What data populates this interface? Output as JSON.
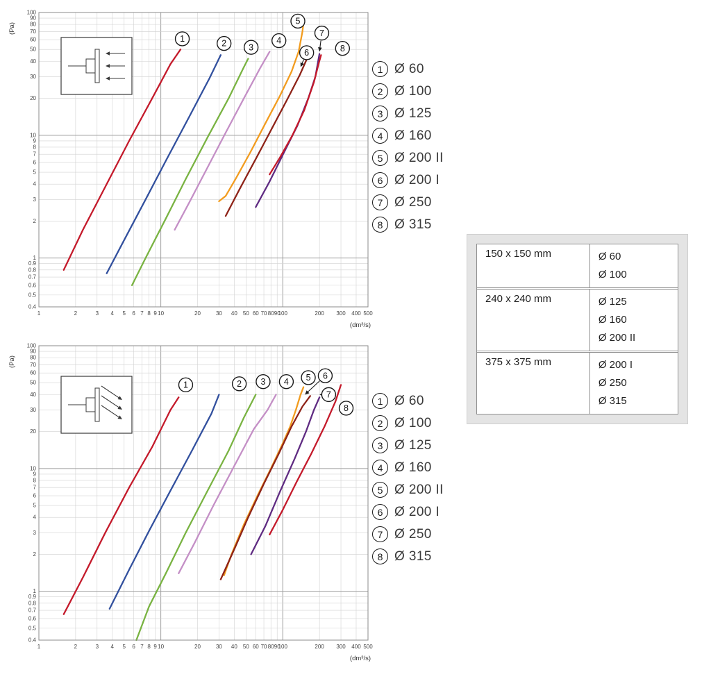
{
  "legend": {
    "items": [
      {
        "num": "1",
        "label": "Ø 60"
      },
      {
        "num": "2",
        "label": "Ø 100"
      },
      {
        "num": "3",
        "label": "Ø 125"
      },
      {
        "num": "4",
        "label": "Ø 160"
      },
      {
        "num": "5",
        "label": "Ø 200 II"
      },
      {
        "num": "6",
        "label": "Ø 200 I"
      },
      {
        "num": "7",
        "label": "Ø 250"
      },
      {
        "num": "8",
        "label": "Ø 315"
      }
    ]
  },
  "table": {
    "rows": [
      {
        "size": "150 x 150 mm",
        "diameters": [
          "Ø 60",
          "Ø 100"
        ]
      },
      {
        "size": "240 x 240 mm",
        "diameters": [
          "Ø 125",
          "Ø 160",
          "Ø 200 II"
        ]
      },
      {
        "size": "375 x 375 mm",
        "diameters": [
          "Ø 200 I",
          "Ø 250",
          "Ø 315"
        ]
      }
    ]
  },
  "chart_data": [
    {
      "type": "line",
      "title": "",
      "x_label": "(dm³/s)",
      "y_label": "(Pa)",
      "x_scale": "log",
      "y_scale": "log",
      "x_range": [
        1,
        500
      ],
      "y_range": [
        0.4,
        100
      ],
      "x_ticks": [
        1,
        2,
        3,
        4,
        5,
        6,
        7,
        8,
        9,
        10,
        20,
        30,
        40,
        50,
        60,
        70,
        80,
        90,
        100,
        200,
        300,
        400,
        500
      ],
      "y_ticks": [
        100,
        90,
        80,
        70,
        60,
        50,
        40,
        30,
        20,
        10,
        9,
        8,
        7,
        6,
        5,
        4,
        3,
        2,
        1,
        0.9,
        0.8,
        0.7,
        0.6,
        0.5,
        0.4
      ],
      "grid": "log-log",
      "legend_position": "right",
      "inset_arrows": "left",
      "series": [
        {
          "num": "1",
          "name": "Ø 60",
          "color": "#c41a2b",
          "points": [
            [
              1.6,
              0.8
            ],
            [
              2.3,
              1.7
            ],
            [
              3.5,
              3.8
            ],
            [
              5.5,
              9
            ],
            [
              8.5,
              20
            ],
            [
              12,
              38
            ],
            [
              14.5,
              50
            ]
          ],
          "label_pos": [
            15,
            61
          ]
        },
        {
          "num": "2",
          "name": "Ø 100",
          "color": "#32509e",
          "points": [
            [
              3.6,
              0.75
            ],
            [
              5,
              1.4
            ],
            [
              7.5,
              3
            ],
            [
              11,
              6.2
            ],
            [
              17,
              14
            ],
            [
              25,
              29
            ],
            [
              31,
              45
            ]
          ],
          "label_pos": [
            33,
            56
          ]
        },
        {
          "num": "3",
          "name": "Ø 125",
          "color": "#79b342",
          "points": [
            [
              5.8,
              0.6
            ],
            [
              7.5,
              1
            ],
            [
              11,
              2.1
            ],
            [
              16,
              4.4
            ],
            [
              24,
              9.5
            ],
            [
              36,
              20
            ],
            [
              48,
              36
            ],
            [
              52,
              42
            ]
          ],
          "label_pos": [
            55,
            52
          ]
        },
        {
          "num": "4",
          "name": "Ø 160",
          "color": "#c48fc6",
          "points": [
            [
              13,
              1.7
            ],
            [
              17,
              2.8
            ],
            [
              24,
              5.4
            ],
            [
              34,
              10.5
            ],
            [
              48,
              20
            ],
            [
              65,
              35
            ],
            [
              78,
              48
            ]
          ],
          "label_pos": [
            93,
            59
          ]
        },
        {
          "num": "5",
          "name": "Ø 200 II",
          "color": "#f29c1f",
          "points": [
            [
              30,
              2.9
            ],
            [
              34,
              3.2
            ],
            [
              41,
              4.4
            ],
            [
              54,
              7.2
            ],
            [
              72,
              12.5
            ],
            [
              95,
              21
            ],
            [
              118,
              33
            ],
            [
              135,
              48
            ],
            [
              145,
              70
            ],
            [
              149,
              88
            ]
          ],
          "label_pos": [
            133,
            85
          ]
        },
        {
          "num": "6",
          "name": "Ø 200 I",
          "color": "#8e2318",
          "points": [
            [
              34,
              2.2
            ],
            [
              44,
              3.6
            ],
            [
              60,
              6.4
            ],
            [
              82,
              11.5
            ],
            [
              110,
              20
            ],
            [
              138,
              31
            ],
            [
              158,
              42
            ]
          ],
          "label_pos": [
            157,
            47
          ],
          "arrow_to": [
            140,
            36
          ]
        },
        {
          "num": "7",
          "name": "Ø 250",
          "color": "#5f2b82",
          "points": [
            [
              60,
              2.6
            ],
            [
              78,
              4.2
            ],
            [
              102,
              7.2
            ],
            [
              132,
              12
            ],
            [
              162,
              20
            ],
            [
              185,
              30
            ],
            [
              200,
              46
            ]
          ],
          "label_pos": [
            209,
            68
          ],
          "arrow_to": [
            200,
            48
          ]
        },
        {
          "num": "8",
          "name": "Ø 315",
          "color": "#c41a2b",
          "points": [
            [
              78,
              4.8
            ],
            [
              95,
              6.6
            ],
            [
              120,
              10
            ],
            [
              150,
              16
            ],
            [
              180,
              27
            ],
            [
              198,
              39
            ],
            [
              206,
              45
            ]
          ],
          "label_pos": [
            309,
            51
          ]
        }
      ]
    },
    {
      "type": "line",
      "title": "",
      "x_label": "(dm³/s)",
      "y_label": "(Pa)",
      "x_scale": "log",
      "y_scale": "log",
      "x_range": [
        1,
        500
      ],
      "y_range": [
        0.4,
        100
      ],
      "x_ticks": [
        1,
        2,
        3,
        4,
        5,
        6,
        7,
        8,
        9,
        10,
        20,
        30,
        40,
        50,
        60,
        70,
        80,
        90,
        100,
        200,
        300,
        400,
        500
      ],
      "y_ticks": [
        100,
        90,
        80,
        70,
        60,
        50,
        40,
        30,
        20,
        10,
        9,
        8,
        7,
        6,
        5,
        4,
        3,
        2,
        1,
        0.9,
        0.8,
        0.7,
        0.6,
        0.5,
        0.4
      ],
      "grid": "log-log",
      "legend_position": "right",
      "inset_arrows": "down-right",
      "series": [
        {
          "num": "1",
          "name": "Ø 60",
          "color": "#c41a2b",
          "points": [
            [
              1.6,
              0.65
            ],
            [
              2.3,
              1.3
            ],
            [
              3.5,
              3
            ],
            [
              5.5,
              7
            ],
            [
              8.5,
              15
            ],
            [
              12,
              30
            ],
            [
              14,
              38
            ]
          ],
          "label_pos": [
            16,
            48
          ]
        },
        {
          "num": "2",
          "name": "Ø 100",
          "color": "#32509e",
          "points": [
            [
              3.8,
              0.72
            ],
            [
              5.5,
              1.5
            ],
            [
              8,
              3.1
            ],
            [
              12,
              6.6
            ],
            [
              18,
              14
            ],
            [
              26,
              28
            ],
            [
              30,
              40
            ]
          ],
          "label_pos": [
            44,
            49
          ]
        },
        {
          "num": "3",
          "name": "Ø 125",
          "color": "#79b342",
          "points": [
            [
              6.3,
              0.4
            ],
            [
              8,
              0.75
            ],
            [
              11,
              1.4
            ],
            [
              16,
              3
            ],
            [
              24,
              6.5
            ],
            [
              36,
              14
            ],
            [
              48,
              26
            ],
            [
              60,
              40
            ]
          ],
          "label_pos": [
            69,
            51
          ]
        },
        {
          "num": "4",
          "name": "Ø 160",
          "color": "#c48fc6",
          "points": [
            [
              14,
              1.4
            ],
            [
              19,
              2.5
            ],
            [
              27,
              5
            ],
            [
              40,
              10.5
            ],
            [
              58,
              21
            ],
            [
              75,
              30
            ],
            [
              88,
              40
            ]
          ],
          "label_pos": [
            107,
            51
          ]
        },
        {
          "num": "5",
          "name": "Ø 200 II",
          "color": "#f29c1f",
          "points": [
            [
              33,
              1.35
            ],
            [
              38,
              2
            ],
            [
              48,
              3.5
            ],
            [
              62,
              6
            ],
            [
              80,
              10
            ],
            [
              100,
              16
            ],
            [
              115,
              22
            ],
            [
              128,
              30
            ],
            [
              140,
              40
            ],
            [
              148,
              46
            ]
          ],
          "label_pos": [
            162,
            55
          ]
        },
        {
          "num": "6",
          "name": "Ø 200 I",
          "color": "#8e2318",
          "points": [
            [
              31,
              1.25
            ],
            [
              40,
              2.2
            ],
            [
              52,
              4
            ],
            [
              70,
              7.5
            ],
            [
              92,
              13
            ],
            [
              118,
              22
            ],
            [
              145,
              32
            ],
            [
              168,
              39
            ]
          ],
          "label_pos": [
            223,
            57
          ],
          "arrow_to": [
            152,
            40
          ]
        },
        {
          "num": "7",
          "name": "Ø 250",
          "color": "#5f2b82",
          "points": [
            [
              55,
              2
            ],
            [
              72,
              3.4
            ],
            [
              95,
              6.5
            ],
            [
              125,
              12
            ],
            [
              155,
              20
            ],
            [
              180,
              30
            ],
            [
              200,
              38
            ]
          ],
          "label_pos": [
            238,
            40
          ],
          "arrow_to": [
            200,
            40
          ]
        },
        {
          "num": "8",
          "name": "Ø 315",
          "color": "#c41a2b",
          "points": [
            [
              78,
              2.9
            ],
            [
              100,
              4.6
            ],
            [
              130,
              7.8
            ],
            [
              170,
              13
            ],
            [
              220,
              22
            ],
            [
              270,
              35
            ],
            [
              300,
              48
            ]
          ],
          "label_pos": [
            331,
            31
          ]
        }
      ]
    }
  ]
}
